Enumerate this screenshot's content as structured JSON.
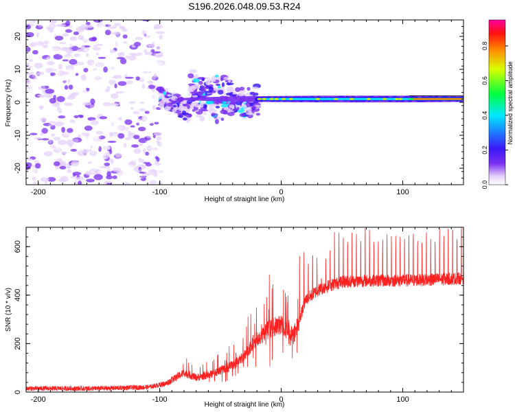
{
  "title": "S196.2026.048.09.53.R24",
  "chart_data": [
    {
      "type": "heatmap",
      "xlabel": "Height of straight line (km)",
      "ylabel": "Frequency (Hz)",
      "xlim": [
        -210,
        150
      ],
      "ylim": [
        -25,
        25
      ],
      "xticks": [
        -200,
        -100,
        0,
        100
      ],
      "yticks": [
        -20,
        -10,
        0,
        10,
        20
      ],
      "tone_frequency_hz": 1,
      "colorbar": {
        "label": "Normalized spectral amplitude",
        "range": [
          0,
          0.95
        ],
        "ticks": [
          0,
          0.2,
          0.4,
          0.6,
          0.8
        ],
        "colormap": [
          "#ffffff",
          "#7a2ff0",
          "#3a18f8",
          "#1d80ff",
          "#00e8ff",
          "#00ff40",
          "#d8ff00",
          "#ff8800",
          "#ff1010",
          "#ff00a0"
        ]
      },
      "regions": [
        {
          "name": "noise",
          "x_range": [
            -210,
            -100
          ],
          "freq_range": [
            -25,
            25
          ]
        },
        {
          "name": "transition",
          "x_range": [
            -100,
            -20
          ],
          "freq_range": [
            -8,
            10
          ]
        },
        {
          "name": "tone",
          "x_range": [
            -20,
            150
          ],
          "freq_range": [
            0,
            2
          ]
        }
      ]
    },
    {
      "type": "line",
      "series_name": "SNR",
      "color": "#ff2020",
      "xlabel": "Height of straight line (km)",
      "ylabel": "SNR (10 * v/v)",
      "xlim": [
        -210,
        150
      ],
      "ylim": [
        0,
        680
      ],
      "xticks": [
        -200,
        -100,
        0,
        100
      ],
      "yticks": [
        0,
        200,
        400,
        600
      ],
      "x": [
        -210,
        -150,
        -110,
        -95,
        -80,
        -70,
        -60,
        -50,
        -40,
        -30,
        -20,
        -10,
        0,
        10,
        15,
        20,
        30,
        40,
        50,
        70,
        100,
        130,
        150
      ],
      "y": [
        15,
        15,
        20,
        35,
        80,
        60,
        70,
        90,
        110,
        150,
        220,
        260,
        280,
        230,
        300,
        380,
        420,
        440,
        455,
        460,
        460,
        465,
        470
      ],
      "spike_peaks_from_x": 15,
      "spike_peak_range": [
        580,
        680
      ]
    }
  ]
}
